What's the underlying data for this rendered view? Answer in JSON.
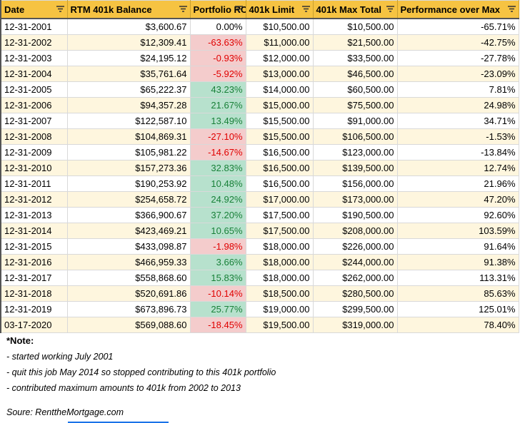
{
  "table": {
    "header": [
      "Date",
      "RTM 401k Balance",
      "Portfolio ROI",
      "401k Limit",
      "401k Max Total",
      "Performance over Max"
    ],
    "rows": [
      [
        "12-31-2001",
        "$3,600.67",
        "0.00%",
        "$10,500.00",
        "$10,500.00",
        "-65.71%"
      ],
      [
        "12-31-2002",
        "$12,309.41",
        "-63.63%",
        "$11,000.00",
        "$21,500.00",
        "-42.75%"
      ],
      [
        "12-31-2003",
        "$24,195.12",
        "-0.93%",
        "$12,000.00",
        "$33,500.00",
        "-27.78%"
      ],
      [
        "12-31-2004",
        "$35,761.64",
        "-5.92%",
        "$13,000.00",
        "$46,500.00",
        "-23.09%"
      ],
      [
        "12-31-2005",
        "$65,222.37",
        "43.23%",
        "$14,000.00",
        "$60,500.00",
        "7.81%"
      ],
      [
        "12-31-2006",
        "$94,357.28",
        "21.67%",
        "$15,000.00",
        "$75,500.00",
        "24.98%"
      ],
      [
        "12-31-2007",
        "$122,587.10",
        "13.49%",
        "$15,500.00",
        "$91,000.00",
        "34.71%"
      ],
      [
        "12-31-2008",
        "$104,869.31",
        "-27.10%",
        "$15,500.00",
        "$106,500.00",
        "-1.53%"
      ],
      [
        "12-31-2009",
        "$105,981.22",
        "-14.67%",
        "$16,500.00",
        "$123,000.00",
        "-13.84%"
      ],
      [
        "12-31-2010",
        "$157,273.36",
        "32.83%",
        "$16,500.00",
        "$139,500.00",
        "12.74%"
      ],
      [
        "12-31-2011",
        "$190,253.92",
        "10.48%",
        "$16,500.00",
        "$156,000.00",
        "21.96%"
      ],
      [
        "12-31-2012",
        "$254,658.72",
        "24.92%",
        "$17,000.00",
        "$173,000.00",
        "47.20%"
      ],
      [
        "12-31-2013",
        "$366,900.67",
        "37.20%",
        "$17,500.00",
        "$190,500.00",
        "92.60%"
      ],
      [
        "12-31-2014",
        "$423,469.21",
        "10.65%",
        "$17,500.00",
        "$208,000.00",
        "103.59%"
      ],
      [
        "12-31-2015",
        "$433,098.87",
        "-1.98%",
        "$18,000.00",
        "$226,000.00",
        "91.64%"
      ],
      [
        "12-31-2016",
        "$466,959.33",
        "3.66%",
        "$18,000.00",
        "$244,000.00",
        "91.38%"
      ],
      [
        "12-31-2017",
        "$558,868.60",
        "15.83%",
        "$18,000.00",
        "$262,000.00",
        "113.31%"
      ],
      [
        "12-31-2018",
        "$520,691.86",
        "-10.14%",
        "$18,500.00",
        "$280,500.00",
        "85.63%"
      ],
      [
        "12-31-2019",
        "$673,896.73",
        "25.77%",
        "$19,000.00",
        "$299,500.00",
        "125.01%"
      ],
      [
        "03-17-2020",
        "$569,088.60",
        "-18.45%",
        "$19,500.00",
        "$319,000.00",
        "78.40%"
      ]
    ]
  },
  "notes": {
    "title": "*Note:",
    "lines": [
      "- started working July 2001",
      "- quit this job May 2014 so stopped contributing to this 401k portfolio",
      "- contributed maximum amounts to 401k from 2002 to 2013"
    ],
    "source": "Soure: RenttheMortgage.com"
  }
}
